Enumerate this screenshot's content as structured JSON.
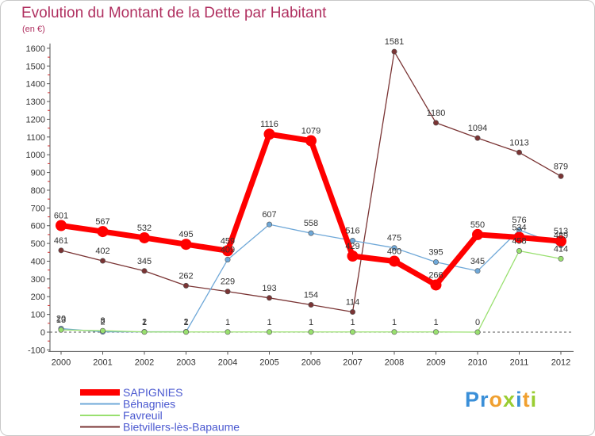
{
  "header": {
    "title": "Evolution du Montant de la Dette par Habitant",
    "subtitle": "(en €)"
  },
  "brand": {
    "text": "Proxiti",
    "letters": [
      {
        "ch": "P",
        "color": "#3a8fd8"
      },
      {
        "ch": "r",
        "color": "#3a8fd8"
      },
      {
        "ch": "o",
        "color": "#f0a030"
      },
      {
        "ch": "x",
        "color": "#9acd32"
      },
      {
        "ch": "i",
        "color": "#3a8fd8"
      },
      {
        "ch": "t",
        "color": "#f0a030"
      },
      {
        "ch": "i",
        "color": "#9acd32"
      }
    ]
  },
  "chart_data": {
    "type": "line",
    "title": "Evolution du Montant de la Dette par Habitant",
    "subtitle": "(en €)",
    "x": [
      "2000",
      "2001",
      "2002",
      "2003",
      "2004",
      "2005",
      "2006",
      "2007",
      "2008",
      "2009",
      "2010",
      "2011",
      "2012"
    ],
    "ylim": [
      -100,
      1600
    ],
    "yticks": [
      -100,
      0,
      100,
      200,
      300,
      400,
      500,
      600,
      700,
      800,
      900,
      1000,
      1100,
      1200,
      1300,
      1400,
      1500,
      1600
    ],
    "grid": false,
    "legend": "bottom-left",
    "series": [
      {
        "name": "SAPIGNIES",
        "color": "#ff0000",
        "values": [
          601,
          567,
          532,
          495,
          459,
          1116,
          1079,
          429,
          400,
          266,
          550,
          534,
          513
        ]
      },
      {
        "name": "Béhagnies",
        "color": "#6fa8d8",
        "values": [
          20,
          2,
          2,
          2,
          409,
          607,
          558,
          516,
          475,
          395,
          345,
          576,
          489
        ]
      },
      {
        "name": "Favreuil",
        "color": "#99e06f",
        "values": [
          13,
          8,
          1,
          1,
          1,
          1,
          1,
          1,
          1,
          1,
          0,
          458,
          414
        ]
      },
      {
        "name": "Bietvillers-lès-Bapaume",
        "color": "#7a3434",
        "values": [
          461,
          402,
          345,
          262,
          229,
          193,
          154,
          114,
          1581,
          1180,
          1094,
          1013,
          879
        ]
      }
    ]
  }
}
